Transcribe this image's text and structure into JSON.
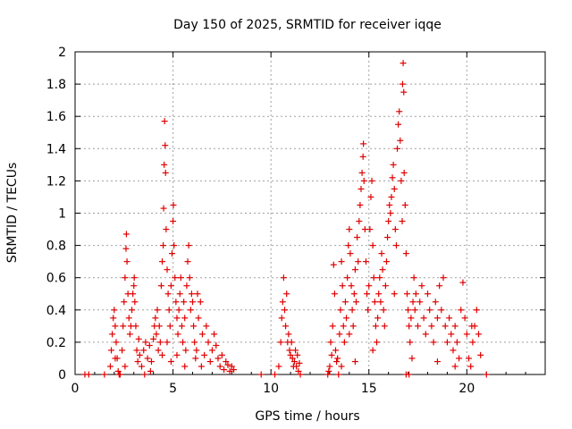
{
  "chart_data": {
    "type": "scatter",
    "title": "Day 150 of 2025, SRMTID for receiver iqqe",
    "xlabel": "GPS time / hours",
    "ylabel": "SRMTID / TECUs",
    "xlim": [
      0,
      24
    ],
    "ylim": [
      0,
      2
    ],
    "xticks": [
      0,
      5,
      10,
      15,
      20
    ],
    "yticks": [
      0,
      0.2,
      0.4,
      0.6,
      0.8,
      1,
      1.2,
      1.4,
      1.6,
      1.8,
      2
    ],
    "ytick_labels": [
      "0",
      "0.2",
      "0.4",
      "0.6",
      "0.8",
      "1",
      "1.2",
      "1.4",
      "1.6",
      "1.8",
      "2"
    ],
    "grid": true,
    "marker": "+",
    "color": "#e00000",
    "series": [
      {
        "name": "SRMTID",
        "points": [
          [
            0.5,
            0.0
          ],
          [
            0.7,
            0.0
          ],
          [
            1.5,
            0.0
          ],
          [
            1.8,
            0.05
          ],
          [
            1.85,
            0.15
          ],
          [
            1.9,
            0.25
          ],
          [
            1.95,
            0.35
          ],
          [
            2.0,
            0.4
          ],
          [
            2.05,
            0.3
          ],
          [
            2.1,
            0.2
          ],
          [
            2.15,
            0.1
          ],
          [
            2.2,
            0.02
          ],
          [
            2.25,
            0.0
          ],
          [
            2.3,
            0.0
          ],
          [
            2.4,
            0.15
          ],
          [
            2.45,
            0.3
          ],
          [
            2.5,
            0.45
          ],
          [
            2.55,
            0.6
          ],
          [
            2.6,
            0.78
          ],
          [
            2.62,
            0.87
          ],
          [
            2.65,
            0.7
          ],
          [
            2.7,
            0.5
          ],
          [
            2.75,
            0.35
          ],
          [
            2.8,
            0.25
          ],
          [
            2.85,
            0.3
          ],
          [
            2.9,
            0.4
          ],
          [
            2.95,
            0.5
          ],
          [
            3.0,
            0.55
          ],
          [
            3.02,
            0.6
          ],
          [
            3.05,
            0.45
          ],
          [
            3.1,
            0.3
          ],
          [
            3.15,
            0.15
          ],
          [
            3.2,
            0.08
          ],
          [
            3.3,
            0.12
          ],
          [
            3.4,
            0.05
          ],
          [
            3.5,
            0.15
          ],
          [
            3.6,
            0.2
          ],
          [
            3.7,
            0.1
          ],
          [
            3.8,
            0.18
          ],
          [
            3.9,
            0.08
          ],
          [
            4.0,
            0.22
          ],
          [
            4.05,
            0.3
          ],
          [
            4.1,
            0.35
          ],
          [
            4.15,
            0.25
          ],
          [
            4.2,
            0.4
          ],
          [
            4.25,
            0.15
          ],
          [
            4.3,
            0.3
          ],
          [
            4.35,
            0.2
          ],
          [
            4.4,
            0.55
          ],
          [
            4.45,
            0.7
          ],
          [
            4.5,
            0.8
          ],
          [
            4.52,
            1.03
          ],
          [
            4.55,
            1.3
          ],
          [
            4.57,
            1.57
          ],
          [
            4.6,
            1.42
          ],
          [
            4.62,
            1.25
          ],
          [
            4.65,
            0.9
          ],
          [
            4.7,
            0.65
          ],
          [
            4.75,
            0.5
          ],
          [
            4.8,
            0.4
          ],
          [
            4.85,
            0.3
          ],
          [
            4.9,
            0.55
          ],
          [
            4.95,
            0.75
          ],
          [
            5.0,
            0.95
          ],
          [
            5.02,
            1.05
          ],
          [
            5.05,
            0.8
          ],
          [
            5.1,
            0.6
          ],
          [
            5.15,
            0.45
          ],
          [
            5.2,
            0.35
          ],
          [
            5.25,
            0.25
          ],
          [
            5.3,
            0.4
          ],
          [
            5.35,
            0.5
          ],
          [
            5.4,
            0.6
          ],
          [
            5.45,
            0.3
          ],
          [
            5.5,
            0.2
          ],
          [
            5.55,
            0.45
          ],
          [
            5.6,
            0.35
          ],
          [
            5.65,
            0.15
          ],
          [
            5.7,
            0.55
          ],
          [
            5.75,
            0.7
          ],
          [
            5.8,
            0.8
          ],
          [
            5.85,
            0.6
          ],
          [
            5.9,
            0.4
          ],
          [
            5.95,
            0.5
          ],
          [
            6.0,
            0.45
          ],
          [
            6.05,
            0.3
          ],
          [
            6.1,
            0.2
          ],
          [
            6.15,
            0.1
          ],
          [
            6.2,
            0.15
          ],
          [
            6.3,
            0.35
          ],
          [
            6.4,
            0.45
          ],
          [
            6.5,
            0.25
          ],
          [
            6.6,
            0.12
          ],
          [
            6.7,
            0.3
          ],
          [
            6.8,
            0.2
          ],
          [
            6.9,
            0.08
          ],
          [
            7.0,
            0.15
          ],
          [
            7.1,
            0.25
          ],
          [
            7.2,
            0.18
          ],
          [
            7.3,
            0.1
          ],
          [
            7.4,
            0.05
          ],
          [
            7.5,
            0.12
          ],
          [
            7.6,
            0.03
          ],
          [
            7.7,
            0.08
          ],
          [
            7.8,
            0.06
          ],
          [
            7.9,
            0.02
          ],
          [
            8.0,
            0.05
          ],
          [
            8.1,
            0.03
          ],
          [
            6.25,
            0.5
          ],
          [
            6.45,
            0.05
          ],
          [
            5.6,
            0.05
          ],
          [
            5.2,
            0.12
          ],
          [
            4.9,
            0.08
          ],
          [
            4.7,
            0.2
          ],
          [
            4.45,
            0.12
          ],
          [
            3.85,
            0.02
          ],
          [
            3.55,
            0.0
          ],
          [
            3.25,
            0.22
          ],
          [
            2.55,
            0.05
          ],
          [
            2.05,
            0.1
          ],
          [
            9.5,
            0.0
          ],
          [
            10.2,
            0.0
          ],
          [
            10.4,
            0.05
          ],
          [
            10.5,
            0.2
          ],
          [
            10.55,
            0.35
          ],
          [
            10.6,
            0.45
          ],
          [
            10.65,
            0.6
          ],
          [
            10.7,
            0.4
          ],
          [
            10.75,
            0.3
          ],
          [
            10.8,
            0.5
          ],
          [
            10.85,
            0.2
          ],
          [
            10.9,
            0.25
          ],
          [
            10.95,
            0.15
          ],
          [
            11.0,
            0.12
          ],
          [
            11.05,
            0.2
          ],
          [
            11.1,
            0.1
          ],
          [
            11.15,
            0.05
          ],
          [
            11.2,
            0.08
          ],
          [
            11.25,
            0.15
          ],
          [
            11.3,
            0.05
          ],
          [
            11.35,
            0.12
          ],
          [
            11.4,
            0.02
          ],
          [
            11.5,
            0.0
          ],
          [
            11.45,
            0.07
          ],
          [
            12.9,
            0.0
          ],
          [
            13.0,
            0.05
          ],
          [
            13.05,
            0.2
          ],
          [
            13.1,
            0.12
          ],
          [
            13.15,
            0.3
          ],
          [
            13.2,
            0.68
          ],
          [
            13.25,
            0.5
          ],
          [
            13.3,
            0.15
          ],
          [
            13.35,
            0.08
          ],
          [
            13.4,
            0.1
          ],
          [
            13.45,
            0.0
          ],
          [
            13.5,
            0.25
          ],
          [
            13.55,
            0.4
          ],
          [
            13.6,
            0.7
          ],
          [
            13.65,
            0.55
          ],
          [
            13.7,
            0.3
          ],
          [
            13.75,
            0.2
          ],
          [
            13.8,
            0.45
          ],
          [
            13.85,
            0.35
          ],
          [
            13.9,
            0.6
          ],
          [
            13.95,
            0.8
          ],
          [
            14.0,
            0.9
          ],
          [
            14.05,
            0.75
          ],
          [
            14.1,
            0.55
          ],
          [
            14.15,
            0.4
          ],
          [
            14.2,
            0.3
          ],
          [
            14.25,
            0.5
          ],
          [
            14.3,
            0.65
          ],
          [
            14.35,
            0.45
          ],
          [
            14.4,
            0.85
          ],
          [
            14.45,
            0.7
          ],
          [
            14.5,
            0.95
          ],
          [
            14.55,
            1.05
          ],
          [
            14.6,
            1.15
          ],
          [
            14.65,
            1.25
          ],
          [
            14.7,
            1.35
          ],
          [
            14.72,
            1.43
          ],
          [
            14.75,
            1.2
          ],
          [
            14.8,
            0.9
          ],
          [
            14.85,
            0.7
          ],
          [
            14.9,
            0.5
          ],
          [
            14.95,
            0.4
          ],
          [
            15.0,
            0.55
          ],
          [
            15.05,
            0.9
          ],
          [
            15.1,
            1.1
          ],
          [
            15.15,
            1.2
          ],
          [
            15.2,
            0.8
          ],
          [
            15.25,
            0.6
          ],
          [
            15.3,
            0.45
          ],
          [
            15.35,
            0.3
          ],
          [
            15.4,
            0.2
          ],
          [
            15.45,
            0.35
          ],
          [
            15.5,
            0.5
          ],
          [
            15.55,
            0.6
          ],
          [
            15.6,
            0.45
          ],
          [
            15.65,
            0.75
          ],
          [
            15.7,
            0.65
          ],
          [
            15.75,
            0.4
          ],
          [
            15.8,
            0.3
          ],
          [
            15.85,
            0.55
          ],
          [
            15.9,
            0.7
          ],
          [
            15.95,
            0.85
          ],
          [
            16.0,
            0.95
          ],
          [
            16.05,
            1.05
          ],
          [
            16.1,
            1.0
          ],
          [
            16.15,
            1.1
          ],
          [
            16.2,
            1.22
          ],
          [
            16.25,
            1.3
          ],
          [
            16.3,
            1.15
          ],
          [
            16.35,
            0.9
          ],
          [
            16.4,
            0.8
          ],
          [
            16.45,
            1.4
          ],
          [
            16.5,
            1.55
          ],
          [
            16.55,
            1.63
          ],
          [
            16.6,
            1.45
          ],
          [
            16.65,
            1.2
          ],
          [
            16.7,
            0.95
          ],
          [
            16.72,
            1.8
          ],
          [
            16.75,
            1.93
          ],
          [
            16.78,
            1.75
          ],
          [
            16.8,
            1.25
          ],
          [
            16.85,
            1.05
          ],
          [
            16.9,
            0.75
          ],
          [
            16.95,
            0.5
          ],
          [
            17.0,
            0.4
          ],
          [
            17.05,
            0.3
          ],
          [
            17.1,
            0.2
          ],
          [
            17.15,
            0.35
          ],
          [
            17.2,
            0.1
          ],
          [
            17.25,
            0.45
          ],
          [
            17.3,
            0.6
          ],
          [
            17.35,
            0.4
          ],
          [
            17.4,
            0.5
          ],
          [
            17.5,
            0.3
          ],
          [
            17.6,
            0.45
          ],
          [
            17.7,
            0.55
          ],
          [
            17.8,
            0.35
          ],
          [
            17.9,
            0.25
          ],
          [
            18.0,
            0.5
          ],
          [
            18.1,
            0.4
          ],
          [
            18.2,
            0.3
          ],
          [
            18.3,
            0.2
          ],
          [
            18.4,
            0.45
          ],
          [
            18.5,
            0.35
          ],
          [
            18.6,
            0.55
          ],
          [
            18.7,
            0.4
          ],
          [
            18.8,
            0.6
          ],
          [
            18.9,
            0.3
          ],
          [
            19.0,
            0.2
          ],
          [
            19.1,
            0.35
          ],
          [
            19.2,
            0.25
          ],
          [
            19.3,
            0.15
          ],
          [
            19.4,
            0.3
          ],
          [
            19.5,
            0.2
          ],
          [
            19.6,
            0.1
          ],
          [
            19.7,
            0.4
          ],
          [
            19.8,
            0.57
          ],
          [
            19.9,
            0.35
          ],
          [
            20.0,
            0.25
          ],
          [
            20.1,
            0.1
          ],
          [
            20.2,
            0.05
          ],
          [
            20.3,
            0.2
          ],
          [
            20.4,
            0.3
          ],
          [
            20.5,
            0.4
          ],
          [
            20.6,
            0.25
          ],
          [
            20.7,
            0.12
          ],
          [
            21.0,
            0.0
          ],
          [
            17.05,
            0.0
          ],
          [
            16.9,
            0.0
          ],
          [
            14.3,
            0.08
          ],
          [
            14.0,
            0.25
          ],
          [
            15.2,
            0.15
          ],
          [
            16.3,
            0.5
          ],
          [
            18.5,
            0.08
          ],
          [
            19.4,
            0.05
          ],
          [
            20.25,
            0.3
          ],
          [
            13.6,
            0.05
          ],
          [
            12.95,
            0.02
          ]
        ]
      }
    ]
  }
}
